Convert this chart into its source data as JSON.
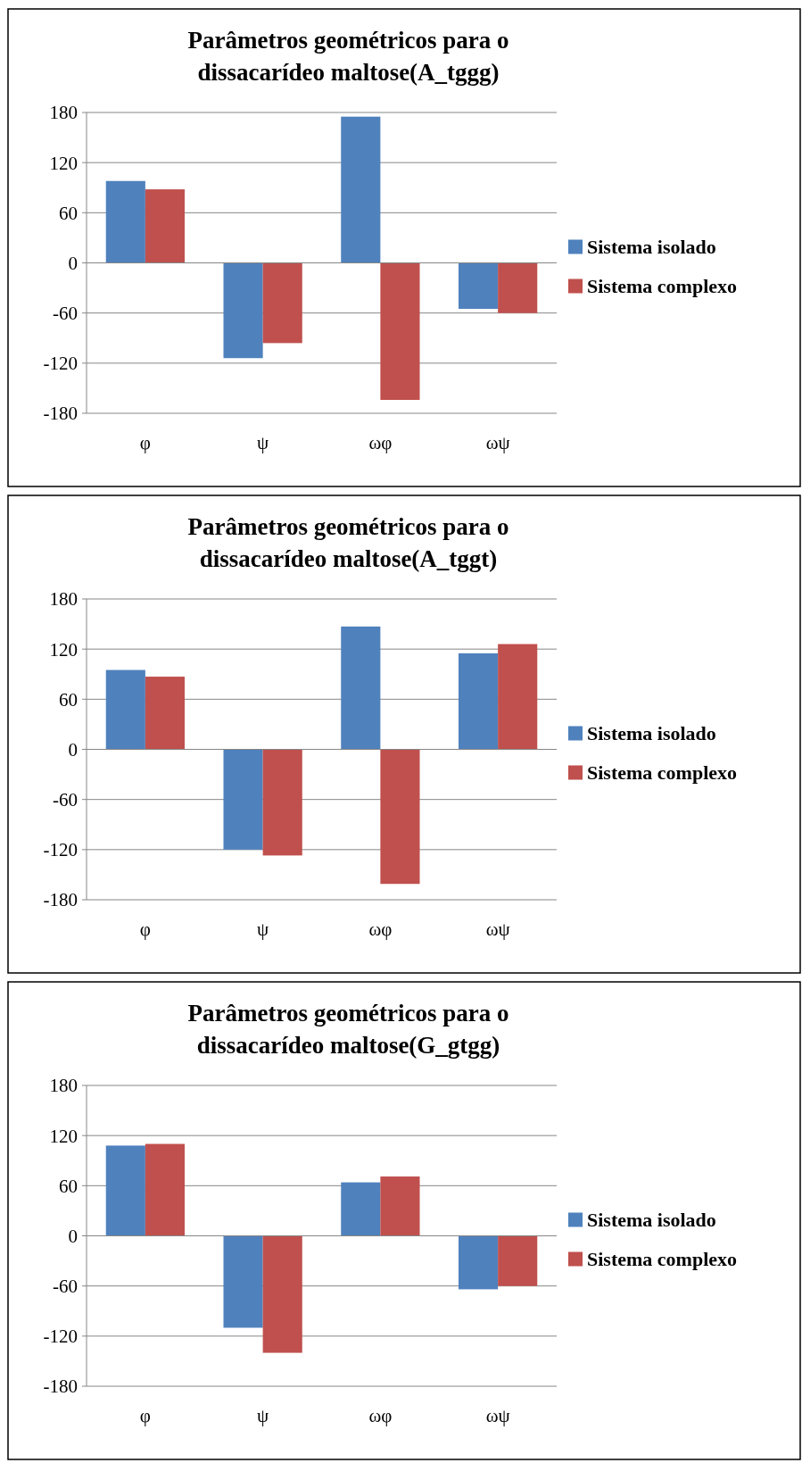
{
  "chart_data": [
    {
      "type": "bar",
      "title": "Parâmetros geométricos para o dissacarídeo maltose(A_tggg)",
      "categories": [
        "φ",
        "ψ",
        "ωφ",
        "ωψ"
      ],
      "series": [
        {
          "name": "Sistema isolado",
          "color": "#4f81bd",
          "values": [
            98,
            -114,
            175,
            -55
          ]
        },
        {
          "name": "Sistema complexo",
          "color": "#c0504d",
          "values": [
            88,
            -96,
            -164,
            -60
          ]
        }
      ],
      "ylim": [
        -180,
        180
      ],
      "yticks": [
        -180,
        -120,
        -60,
        0,
        60,
        120,
        180
      ],
      "grid": "y",
      "legend": "right"
    },
    {
      "type": "bar",
      "title": "Parâmetros geométricos para o dissacarídeo maltose(A_tggt)",
      "categories": [
        "φ",
        "ψ",
        "ωφ",
        "ωψ"
      ],
      "series": [
        {
          "name": "Sistema isolado",
          "color": "#4f81bd",
          "values": [
            95,
            -120,
            147,
            115
          ]
        },
        {
          "name": "Sistema complexo",
          "color": "#c0504d",
          "values": [
            87,
            -127,
            -161,
            126
          ]
        }
      ],
      "ylim": [
        -180,
        180
      ],
      "yticks": [
        -180,
        -120,
        -60,
        0,
        60,
        120,
        180
      ],
      "grid": "y",
      "legend": "right"
    },
    {
      "type": "bar",
      "title": "Parâmetros geométricos para o dissacarídeo maltose(G_gtgg)",
      "categories": [
        "φ",
        "ψ",
        "ωφ",
        "ωψ"
      ],
      "series": [
        {
          "name": "Sistema isolado",
          "color": "#4f81bd",
          "values": [
            108,
            -110,
            64,
            -64
          ]
        },
        {
          "name": "Sistema complexo",
          "color": "#c0504d",
          "values": [
            110,
            -140,
            71,
            -60
          ]
        }
      ],
      "ylim": [
        -180,
        180
      ],
      "yticks": [
        -180,
        -120,
        -60,
        0,
        60,
        120,
        180
      ],
      "grid": "y",
      "legend": "right"
    }
  ]
}
